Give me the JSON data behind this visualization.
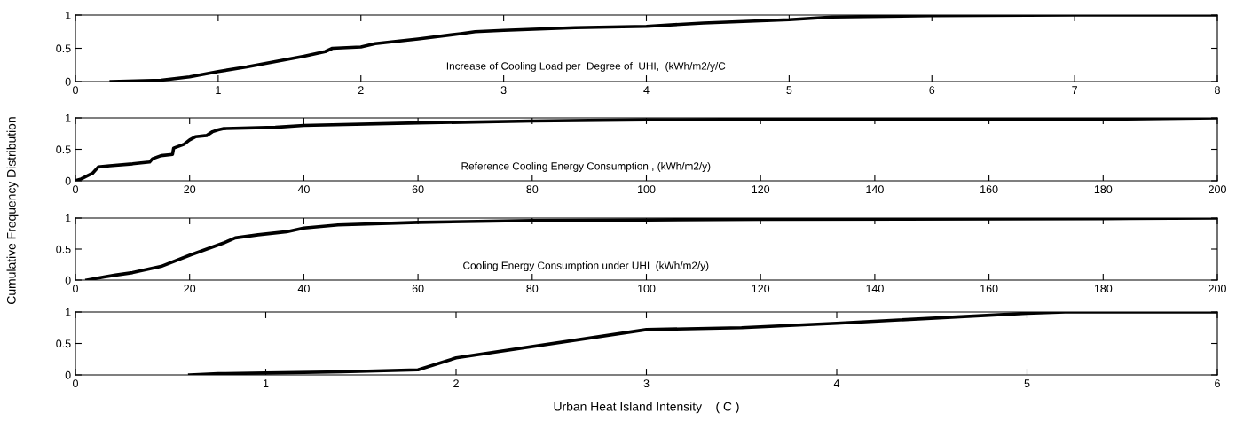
{
  "chart_data": [
    {
      "type": "line",
      "ylabel": "Cumulative Frequency Distribution",
      "annotations": [
        "Increase of Cooling Load per  Degree of  UHI,  (kWh/m2/y/C"
      ],
      "xlim": [
        0,
        8
      ],
      "xticks": [
        0,
        1,
        2,
        3,
        4,
        5,
        6,
        7,
        8
      ],
      "ylim": [
        0,
        1
      ],
      "yticks": [
        0,
        0.5,
        1
      ],
      "series": [
        {
          "color": "#000000",
          "x": [
            0.25,
            0.6,
            0.8,
            1,
            1.2,
            1.4,
            1.6,
            1.75,
            1.8,
            2,
            2.1,
            2.4,
            2.7,
            2.8,
            3,
            3.5,
            4,
            4.4,
            5,
            5.3,
            6,
            7,
            8
          ],
          "values": [
            0,
            0.02,
            0.07,
            0.15,
            0.22,
            0.3,
            0.38,
            0.45,
            0.5,
            0.52,
            0.57,
            0.64,
            0.72,
            0.75,
            0.77,
            0.81,
            0.83,
            0.88,
            0.93,
            0.97,
            0.99,
            1,
            1
          ]
        }
      ]
    },
    {
      "type": "line",
      "annotations": [
        "Reference Cooling Energy Consumption , (kWh/m2/y)"
      ],
      "xlim": [
        0,
        200
      ],
      "xticks": [
        0,
        20,
        40,
        60,
        80,
        100,
        120,
        140,
        160,
        180,
        200
      ],
      "ylim": [
        0,
        1
      ],
      "yticks": [
        0,
        0.5,
        1
      ],
      "series": [
        {
          "color": "#000000",
          "x": [
            0,
            1,
            3,
            4,
            6,
            10,
            13,
            13.5,
            15,
            17,
            17.2,
            19,
            20,
            21,
            23,
            24,
            25,
            26,
            35,
            40,
            60,
            80,
            100,
            130,
            180,
            200
          ],
          "values": [
            0,
            0.03,
            0.12,
            0.22,
            0.24,
            0.27,
            0.3,
            0.35,
            0.4,
            0.42,
            0.52,
            0.58,
            0.65,
            0.7,
            0.72,
            0.78,
            0.81,
            0.83,
            0.85,
            0.88,
            0.92,
            0.95,
            0.97,
            0.98,
            0.98,
            1
          ]
        }
      ]
    },
    {
      "type": "line",
      "annotations": [
        "Cooling Energy Consumption under UHI  (kWh/m2/y)"
      ],
      "xlim": [
        0,
        200
      ],
      "xticks": [
        0,
        20,
        40,
        60,
        80,
        100,
        120,
        140,
        160,
        180,
        200
      ],
      "ylim": [
        0,
        1
      ],
      "yticks": [
        0,
        0.5,
        1
      ],
      "series": [
        {
          "color": "#000000",
          "x": [
            2,
            5,
            7,
            10,
            15,
            20,
            23,
            26,
            28,
            32,
            37,
            40,
            46,
            60,
            80,
            100,
            120,
            180,
            200
          ],
          "values": [
            0,
            0.05,
            0.08,
            0.12,
            0.22,
            0.4,
            0.5,
            0.6,
            0.68,
            0.73,
            0.78,
            0.84,
            0.89,
            0.93,
            0.96,
            0.97,
            0.98,
            0.99,
            1
          ]
        }
      ]
    },
    {
      "type": "line",
      "xlabel": "Urban Heat Island Intensity    ( C )",
      "xlim": [
        0,
        6
      ],
      "xticks": [
        0,
        1,
        2,
        3,
        4,
        5,
        6
      ],
      "ylim": [
        0,
        1
      ],
      "yticks": [
        0,
        0.5,
        1
      ],
      "series": [
        {
          "color": "#000000",
          "x": [
            0.6,
            0.75,
            1,
            1.4,
            1.8,
            2,
            3,
            3.5,
            4,
            5,
            5.2,
            6
          ],
          "values": [
            0,
            0.02,
            0.03,
            0.05,
            0.08,
            0.27,
            0.72,
            0.75,
            0.82,
            0.98,
            1,
            1
          ]
        }
      ]
    }
  ]
}
